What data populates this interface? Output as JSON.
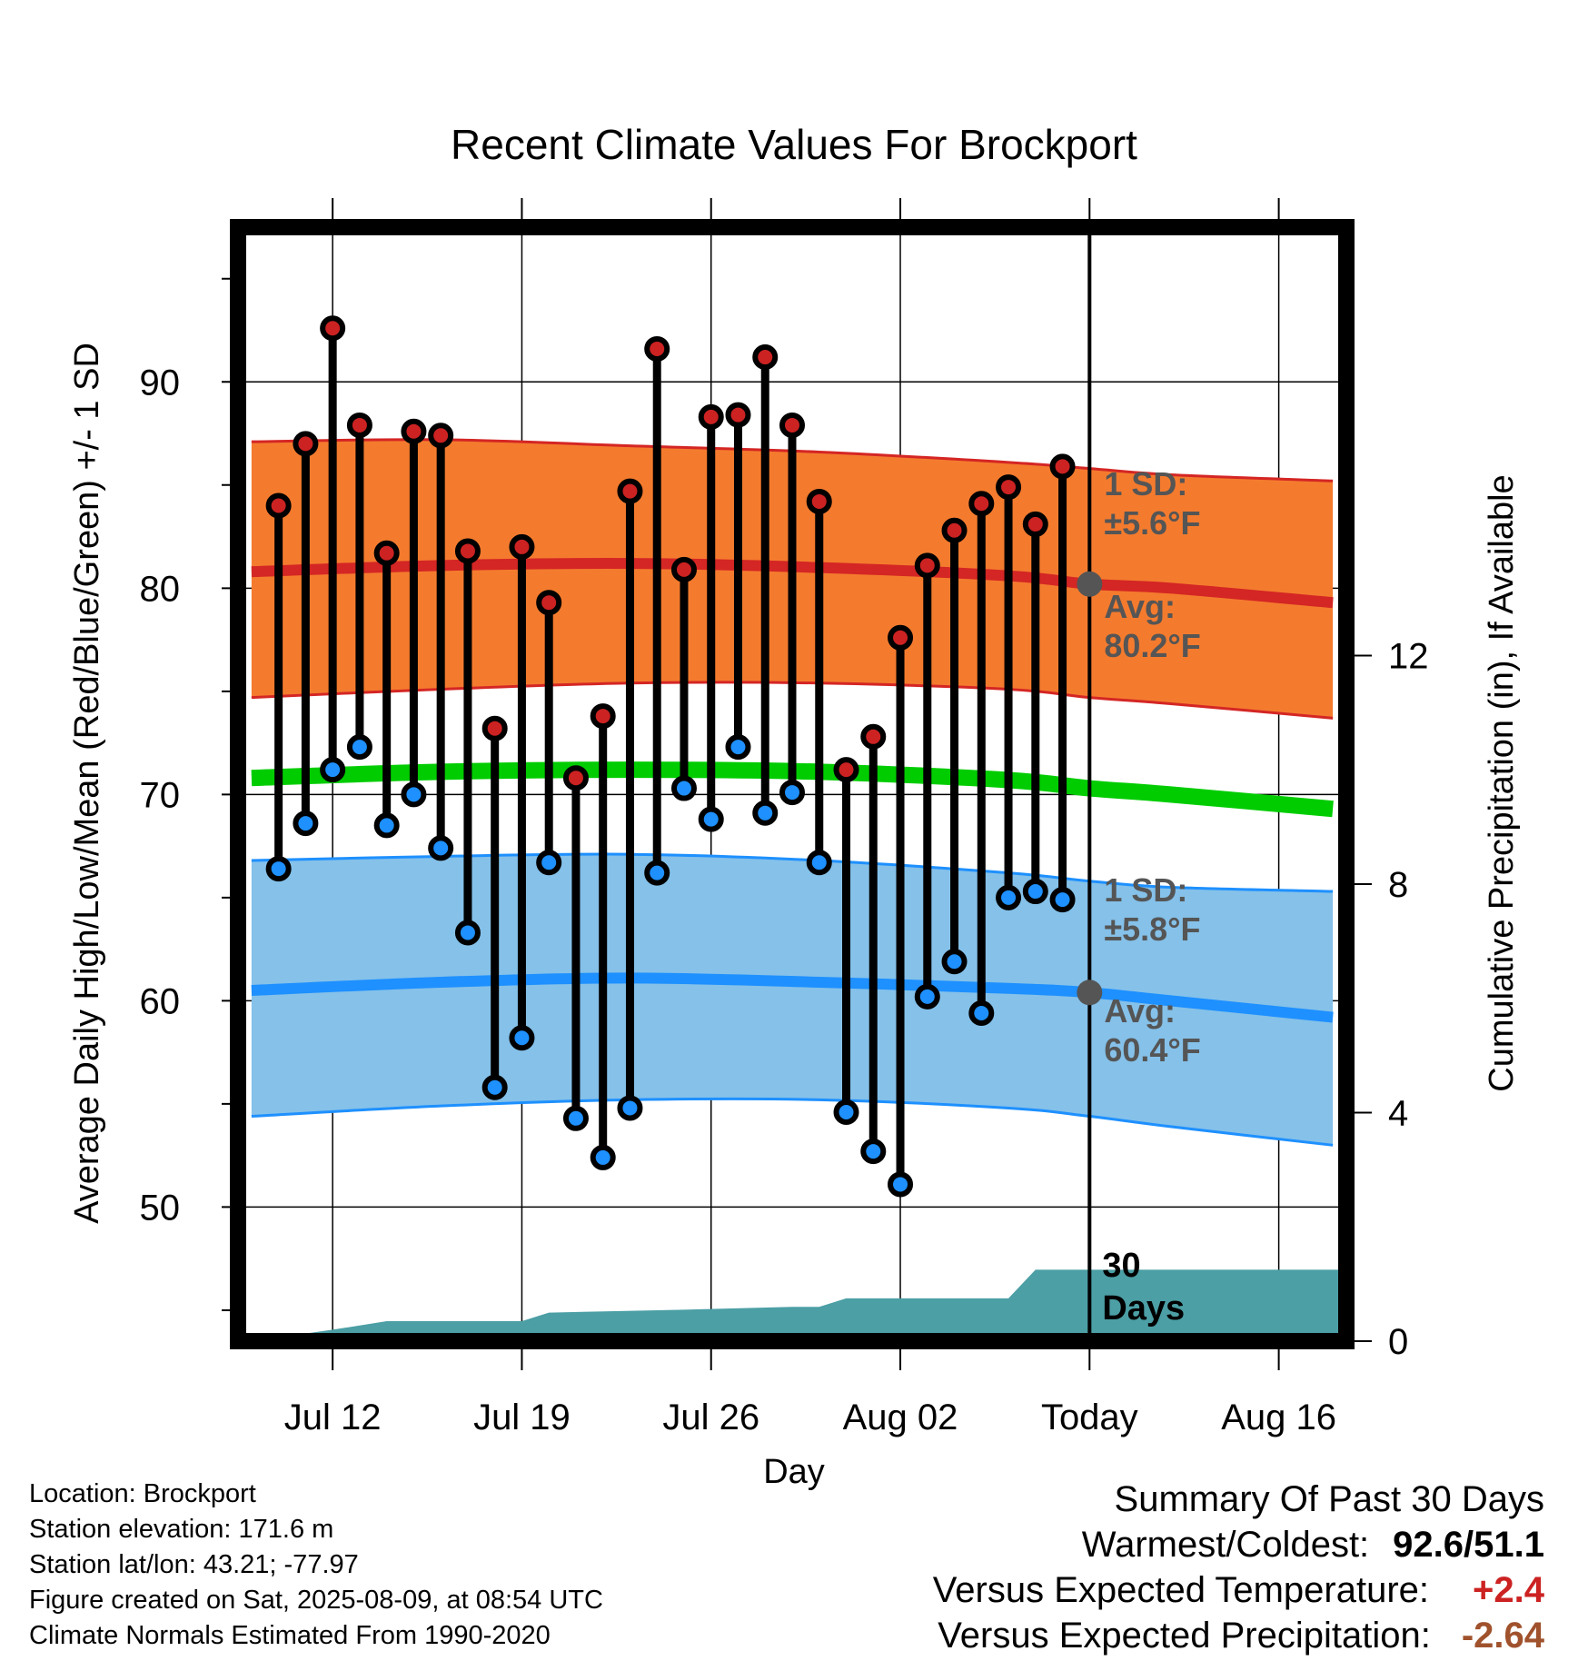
{
  "chart_data": {
    "type": "line",
    "title": "Recent Climate Values For Brockport",
    "xlabel": "Day",
    "ylabel": "Average Daily High/Low/Mean (Red/Blue/Green) +/- 1 SD",
    "y2label": "Cumulative Precipitation (in), If Available",
    "ylim": [
      43.5,
      97.5
    ],
    "y2lim": [
      0,
      19.5
    ],
    "yticks": [
      50,
      60,
      70,
      80,
      90
    ],
    "y2ticks": [
      0,
      4,
      8,
      12
    ],
    "grid": true,
    "xlim_days": [
      -31.5,
      9.5
    ],
    "xticks": [
      {
        "day": -28,
        "label": "Jul 12"
      },
      {
        "day": -21,
        "label": "Jul 19"
      },
      {
        "day": -14,
        "label": "Jul 26"
      },
      {
        "day": -7,
        "label": "Aug 02"
      },
      {
        "day": 0,
        "label": "Today"
      },
      {
        "day": 7,
        "label": "Aug 16"
      }
    ],
    "today_day": 0,
    "today_label": "30\nDays",
    "daily_observations": {
      "days": [
        -30,
        -29,
        -28,
        -27,
        -26,
        -25,
        -24,
        -23,
        -22,
        -21,
        -20,
        -19,
        -18,
        -17,
        -16,
        -15,
        -14,
        -13,
        -12,
        -11,
        -10,
        -9,
        -8,
        -7,
        -6,
        -5,
        -4,
        -3,
        -2,
        -1
      ],
      "high": [
        84.0,
        87.0,
        92.6,
        87.9,
        81.7,
        87.6,
        87.4,
        81.8,
        73.2,
        82.0,
        79.3,
        70.8,
        73.8,
        84.7,
        91.6,
        80.9,
        88.3,
        88.4,
        91.2,
        87.9,
        84.2,
        71.2,
        72.8,
        77.6,
        81.1,
        82.8,
        84.1,
        84.9,
        83.1,
        85.9
      ],
      "low": [
        66.4,
        68.6,
        71.2,
        72.3,
        68.5,
        70.0,
        67.4,
        63.3,
        55.8,
        58.2,
        66.7,
        54.3,
        52.4,
        54.8,
        66.2,
        70.3,
        68.8,
        72.3,
        69.1,
        70.1,
        66.7,
        54.6,
        52.7,
        51.1,
        60.2,
        61.9,
        59.4,
        65.0,
        65.3,
        64.9
      ]
    },
    "normals": {
      "days": [
        -31,
        -24,
        -17,
        -10,
        -3,
        0,
        3,
        9
      ],
      "avg_high": [
        80.8,
        81.1,
        81.2,
        81.0,
        80.6,
        80.2,
        80.0,
        79.3
      ],
      "high_upper": [
        87.1,
        87.2,
        86.9,
        86.6,
        86.1,
        85.8,
        85.5,
        85.2
      ],
      "high_lower": [
        74.7,
        75.1,
        75.4,
        75.4,
        75.1,
        74.7,
        74.4,
        73.7
      ],
      "avg_mean": [
        70.8,
        71.1,
        71.2,
        71.1,
        70.7,
        70.3,
        70.0,
        69.3
      ],
      "avg_low": [
        60.5,
        60.9,
        61.1,
        60.9,
        60.6,
        60.4,
        60.0,
        59.2
      ],
      "low_upper": [
        66.8,
        67.0,
        67.1,
        66.8,
        66.2,
        65.8,
        65.5,
        65.3
      ],
      "low_lower": [
        54.4,
        54.9,
        55.2,
        55.2,
        54.8,
        54.4,
        53.9,
        53.0
      ]
    },
    "precipitation": {
      "days": [
        -31,
        -28,
        -26,
        -21,
        -20,
        -15,
        -11,
        -10,
        -9,
        -3,
        -2,
        9.5
      ],
      "cumulative": [
        0.0,
        0.2,
        0.35,
        0.35,
        0.5,
        0.55,
        0.6,
        0.6,
        0.75,
        0.75,
        1.25,
        1.25
      ]
    },
    "annotations": {
      "high_sd": {
        "l1": "1 SD:",
        "l2": "±5.6°F"
      },
      "high_avg": {
        "l1": "Avg:",
        "l2": "80.2°F"
      },
      "low_sd": {
        "l1": "1 SD:",
        "l2": "±5.8°F"
      },
      "low_avg": {
        "l1": "Avg:",
        "l2": "60.4°F"
      }
    },
    "colors": {
      "high_band": "#f47b2e",
      "high_line": "#d42624",
      "mean_line": "#00cc00",
      "low_band": "#85c1e9",
      "low_line": "#1e90ff",
      "precip": "#4b9fa5",
      "high_marker": "#cc2222",
      "low_marker": "#1e90ff",
      "annotation": "#555555",
      "today_dot": "#555555"
    }
  },
  "footer": {
    "location": "Location: Brockport",
    "elevation": "Station elevation: 171.6 m",
    "latlon": "Station lat/lon: 43.21; -77.97",
    "created": "Figure created on Sat, 2025-08-09, at 08:54 UTC",
    "normals": "Climate Normals Estimated From 1990-2020"
  },
  "summary": {
    "title": "Summary Of Past 30 Days",
    "warm_label": "Warmest/Coldest:",
    "warm_value": "92.6/51.1",
    "temp_label": "Versus Expected Temperature:",
    "temp_value": "+2.4",
    "temp_color": "#cc2222",
    "precip_label": "Versus Expected Precipitation:",
    "precip_value": "-2.64",
    "precip_color": "#a0522d"
  }
}
